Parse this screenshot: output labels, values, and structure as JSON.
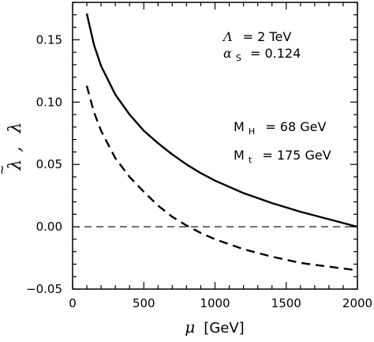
{
  "chart_data": {
    "type": "line",
    "xlabel_symbol": "μ",
    "xlabel_unit": "[GeV]",
    "ylabel_tilde": "~",
    "ylabel_main": "λ",
    "ylabel_sep": ",",
    "ylabel_second": "λ",
    "xlim": [
      0,
      2000
    ],
    "ylim": [
      -0.05,
      0.18
    ],
    "x_ticks": [
      0,
      500,
      1000,
      1500,
      2000
    ],
    "x_tick_labels": [
      "0",
      "500",
      "1000",
      "1500",
      "2000"
    ],
    "y_ticks": [
      -0.05,
      0.0,
      0.05,
      0.1,
      0.15
    ],
    "y_tick_labels": [
      "−0.05",
      "0.00",
      "0.05",
      "0.10",
      "0.15"
    ],
    "grid": false,
    "reference_line": {
      "y": 0.0,
      "style": "dashed"
    },
    "series": [
      {
        "style": "solid",
        "x": [
          100,
          150,
          200,
          300,
          400,
          500,
          600,
          700,
          800,
          900,
          1000,
          1200,
          1400,
          1600,
          1800,
          2000
        ],
        "y": [
          0.171,
          0.146,
          0.129,
          0.106,
          0.09,
          0.077,
          0.067,
          0.058,
          0.05,
          0.043,
          0.037,
          0.027,
          0.019,
          0.012,
          0.006,
          0.0
        ]
      },
      {
        "style": "dashed",
        "x": [
          100,
          150,
          200,
          300,
          400,
          500,
          600,
          700,
          800,
          900,
          1000,
          1200,
          1400,
          1600,
          1800,
          2000
        ],
        "y": [
          0.113,
          0.092,
          0.077,
          0.055,
          0.04,
          0.028,
          0.017,
          0.008,
          0.001,
          -0.005,
          -0.01,
          -0.018,
          -0.024,
          -0.029,
          -0.032,
          -0.035
        ]
      }
    ],
    "annotations": {
      "lambda_line": {
        "symbol": "Λ",
        "rest": "=  2  TeV"
      },
      "alpha_line": {
        "symbol": "α",
        "sub": "S",
        "rest": "=  0.124"
      },
      "mh_line": {
        "symbol": "M",
        "sub": "H",
        "rest": "=  68  GeV"
      },
      "mt_line": {
        "symbol": "M",
        "sub": "t",
        "rest": "=  175  GeV"
      }
    }
  }
}
